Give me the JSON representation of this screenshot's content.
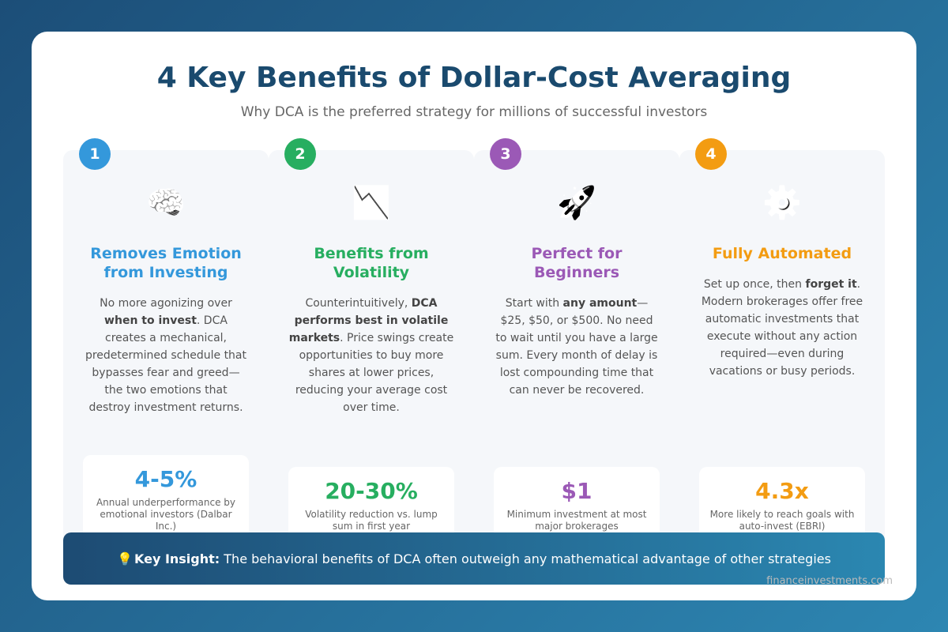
{
  "header": {
    "title": "4 Key Benefits of Dollar-Cost Averaging",
    "subtitle": "Why DCA is the preferred strategy for millions of successful investors"
  },
  "cards": [
    {
      "number": "1",
      "icon": "🧠",
      "color": "#3498db",
      "title": "Removes Emotion from Investing",
      "description": [
        {
          "text": "No more agonizing over "
        },
        {
          "text": "when to invest",
          "bold": true
        },
        {
          "text": ". DCA creates a mechanical, predetermined schedule that bypasses fear and greed—the two emotions that destroy investment returns."
        }
      ],
      "stat": {
        "value": "4-5%",
        "label": "Annual underperformance by emotional investors (Dalbar Inc.)"
      }
    },
    {
      "number": "2",
      "icon": "📉",
      "color": "#27ae60",
      "title": "Benefits from Volatility",
      "description": [
        {
          "text": "Counterintuitively, "
        },
        {
          "text": "DCA performs best in volatile markets",
          "bold": true
        },
        {
          "text": ". Price swings create opportunities to buy more shares at lower prices, reducing your average cost over time."
        }
      ],
      "stat": {
        "value": "20-30%",
        "label": "Volatility reduction vs. lump sum in first year"
      }
    },
    {
      "number": "3",
      "icon": "🚀",
      "color": "#9b59b6",
      "title": "Perfect for Beginners",
      "description": [
        {
          "text": "Start with "
        },
        {
          "text": "any amount",
          "bold": true
        },
        {
          "text": "—$25, $50, or $500. No need to wait until you have a large sum. Every month of delay is lost compounding time that can never be recovered."
        }
      ],
      "stat": {
        "value": "$1",
        "label": "Minimum investment at most major brokerages"
      }
    },
    {
      "number": "4",
      "icon": "⚙️",
      "color": "#f39c12",
      "title": "Fully Automated",
      "description": [
        {
          "text": "Set up once, then "
        },
        {
          "text": "forget it",
          "bold": true
        },
        {
          "text": ". Modern brokerages offer free automatic investments that execute without any action required—even during vacations or busy periods."
        }
      ],
      "stat": {
        "value": "4.3x",
        "label": "More likely to reach goals with auto-invest (EBRI)"
      }
    }
  ],
  "insight": {
    "icon": "💡",
    "label": "Key Insight:",
    "text": " The behavioral benefits of DCA often outweigh any mathematical advantage of other strategies"
  },
  "footer": {
    "source": "financeinvestments.com"
  }
}
